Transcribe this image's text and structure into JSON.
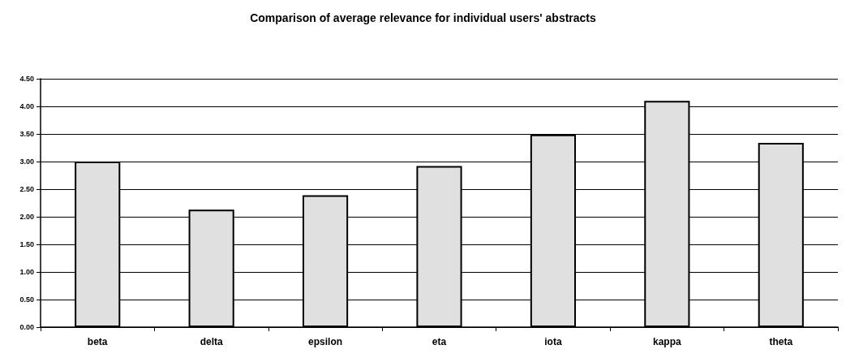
{
  "chart_data": {
    "type": "bar",
    "title": "Comparison of average relevance for individual users' abstracts",
    "categories": [
      "beta",
      "delta",
      "epsilon",
      "eta",
      "iota",
      "kappa",
      "theta"
    ],
    "values": [
      3.0,
      2.13,
      2.39,
      2.92,
      3.49,
      4.1,
      3.34
    ],
    "color": "#e0e0e0",
    "ylim": [
      0,
      4.5
    ],
    "yticks": [
      {
        "value": 0,
        "label": "0.00"
      },
      {
        "value": 0.5,
        "label": "0.50"
      },
      {
        "value": 1,
        "label": "1.00"
      },
      {
        "value": 1.5,
        "label": "1.50"
      },
      {
        "value": 2,
        "label": "2.00"
      },
      {
        "value": 2.5,
        "label": "2.50"
      },
      {
        "value": 3,
        "label": "3.00"
      },
      {
        "value": 3.5,
        "label": "3.50"
      },
      {
        "value": 4,
        "label": "4.00"
      },
      {
        "value": 4.5,
        "label": "4.50"
      }
    ],
    "grid": true
  }
}
